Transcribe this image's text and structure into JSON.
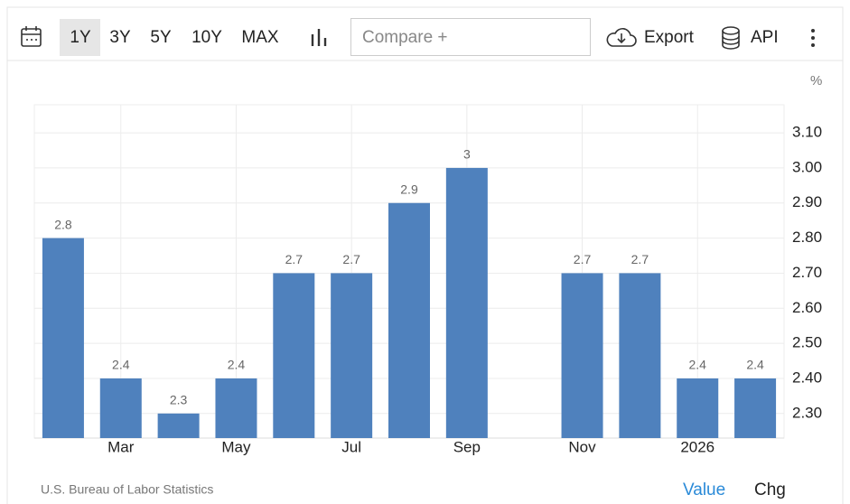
{
  "toolbar": {
    "ranges": [
      "1Y",
      "3Y",
      "5Y",
      "10Y",
      "MAX"
    ],
    "compare": "Compare +",
    "export": "Export",
    "api": "API"
  },
  "chart_data": {
    "type": "bar",
    "unit": "%",
    "categories": [
      null,
      "Mar",
      null,
      "May",
      null,
      "Jul",
      null,
      "Sep",
      null,
      "Nov",
      null,
      "2026",
      null
    ],
    "values": [
      2.8,
      2.4,
      2.3,
      2.4,
      2.7,
      2.7,
      2.9,
      3,
      null,
      2.7,
      2.7,
      2.4,
      2.4
    ],
    "color": "#4f81bd",
    "ylim": [
      2.23,
      3.18
    ],
    "yticks": [
      {
        "value": 2.3,
        "label": "2.30"
      },
      {
        "value": 2.4,
        "label": "2.40"
      },
      {
        "value": 2.5,
        "label": "2.50"
      },
      {
        "value": 2.6,
        "label": "2.60"
      },
      {
        "value": 2.7,
        "label": "2.70"
      },
      {
        "value": 2.8,
        "label": "2.80"
      },
      {
        "value": 2.9,
        "label": "2.90"
      },
      {
        "value": 3.0,
        "label": "3.00"
      },
      {
        "value": 3.1,
        "label": "3.10"
      }
    ],
    "grid": true,
    "source": "U.S. Bureau of Labor Statistics"
  },
  "footer": {
    "value": "Value",
    "chg": "Chg"
  }
}
